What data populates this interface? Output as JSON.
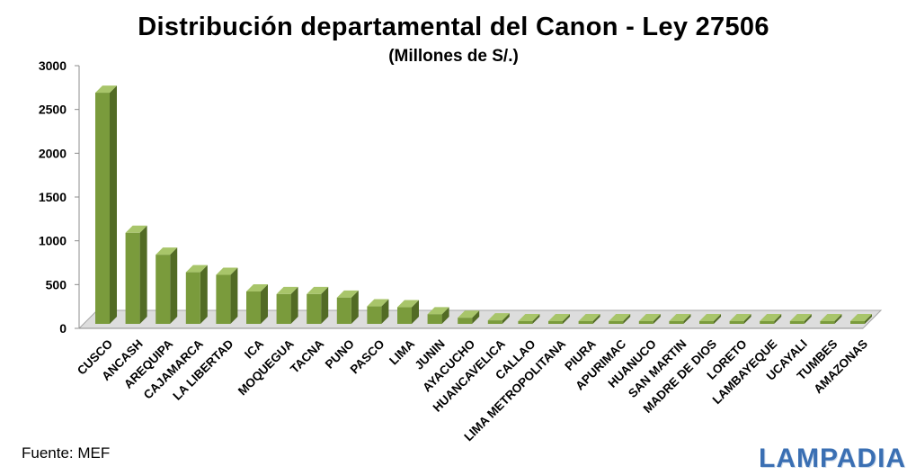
{
  "chart_data": {
    "type": "bar",
    "title": "Distribución departamental del Canon  - Ley 27506",
    "subtitle": "(Millones de S/.)",
    "ylim": [
      0,
      3000
    ],
    "yticks": [
      "0",
      "500",
      "1000",
      "1500",
      "2000",
      "2500",
      "3000"
    ],
    "grid": false,
    "categories": [
      "CUSCO",
      "ANCASH",
      "AREQUIPA",
      "CAJAMARCA",
      "LA LIBERTAD",
      "ICA",
      "MOQUEGUA",
      "TACNA",
      "PUNO",
      "PASCO",
      "LIMA",
      "JUNIN",
      "AYACUCHO",
      "HUANCAVELICA",
      "CALLAO",
      "LIMA METROPOLITANA",
      "PIURA",
      "APURIMAC",
      "HUANUCO",
      "SAN MARTIN",
      "MADRE DE DIOS",
      "LORETO",
      "LAMBAYEQUE",
      "UCAYALI",
      "TUMBES",
      "AMAZONAS"
    ],
    "values": [
      2650,
      1050,
      800,
      600,
      570,
      380,
      350,
      350,
      310,
      210,
      200,
      120,
      80,
      50,
      5,
      4,
      3,
      3,
      2,
      2,
      2,
      1,
      1,
      1,
      1,
      1
    ],
    "colors": {
      "bar_front": "#7a9b3c",
      "bar_side": "#526b25",
      "bar_top": "#a8c56a",
      "floor": "#dddddd"
    }
  },
  "footer": {
    "source": "Fuente: MEF",
    "logo": "LAMPADIA"
  }
}
